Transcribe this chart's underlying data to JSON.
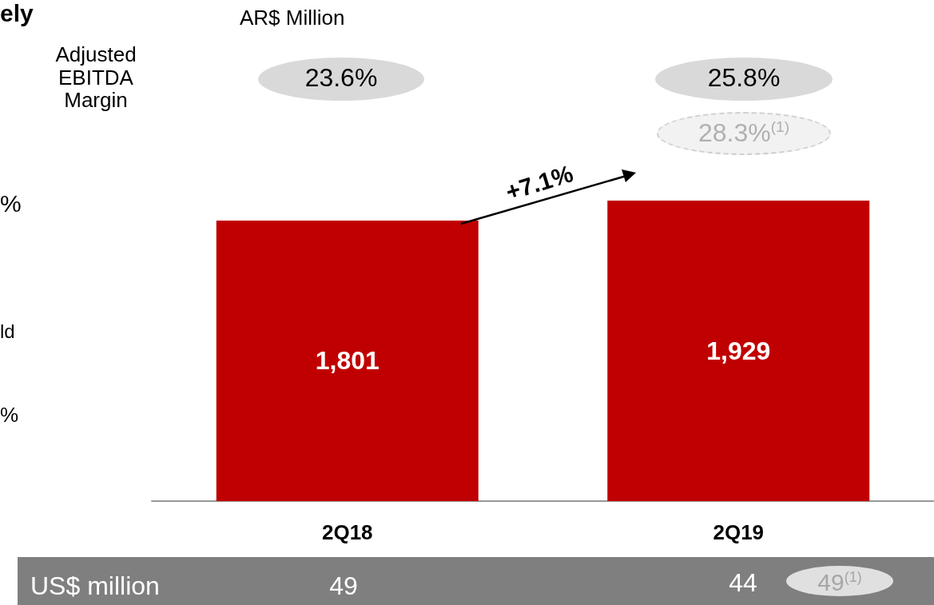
{
  "chart_data": {
    "type": "bar",
    "categories": [
      "2Q18",
      "2Q19"
    ],
    "values": [
      1801,
      1929
    ],
    "value_labels": [
      "1,801",
      "1,929"
    ],
    "color": "#c00000",
    "annotations": [
      "AR$ Million",
      "Adjusted\nEBITDA\nMargin",
      "23.6%",
      "25.8%",
      "28.3%$^{(1)}$",
      "+7.1%",
      "US$ million",
      "49",
      "44",
      "49$^{(1)}$",
      "ely",
      "%",
      "ld",
      "%"
    ]
  }
}
